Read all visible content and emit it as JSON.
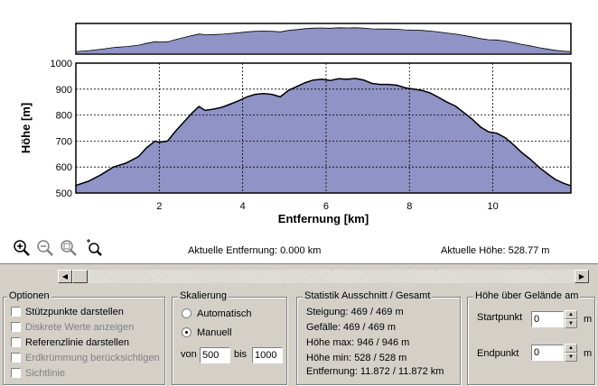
{
  "chart_data": {
    "type": "area",
    "title": "",
    "xlabel": "Entfernung [km]",
    "ylabel": "Höhe [m]",
    "xlim": [
      0,
      11.872
    ],
    "ylim": [
      500,
      1000
    ],
    "x_ticks": [
      2,
      4,
      6,
      8,
      10
    ],
    "x_tick_labels": [
      "2",
      "4",
      "6",
      "8",
      "10"
    ],
    "y_ticks": [
      500,
      600,
      700,
      800,
      900,
      1000
    ],
    "y_tick_labels": [
      "500",
      "600",
      "700",
      "800",
      "900",
      "1000"
    ],
    "grid": true,
    "fill_color": "#8f93c6",
    "line_color": "#000000",
    "x": [
      0,
      0.3,
      0.6,
      0.9,
      1.2,
      1.5,
      1.7,
      1.9,
      2.0,
      2.2,
      2.4,
      2.6,
      2.8,
      2.95,
      3.1,
      3.3,
      3.5,
      3.7,
      3.9,
      4.1,
      4.3,
      4.5,
      4.7,
      4.9,
      5.1,
      5.3,
      5.5,
      5.7,
      5.9,
      6.1,
      6.3,
      6.5,
      6.7,
      6.9,
      7.1,
      7.3,
      7.5,
      7.7,
      7.9,
      8.1,
      8.3,
      8.5,
      8.7,
      8.9,
      9.1,
      9.3,
      9.5,
      9.7,
      9.9,
      10.1,
      10.3,
      10.5,
      10.7,
      10.9,
      11.1,
      11.3,
      11.5,
      11.7,
      11.872
    ],
    "y": [
      529,
      545,
      570,
      600,
      615,
      640,
      675,
      700,
      695,
      700,
      740,
      775,
      810,
      833,
      818,
      823,
      830,
      842,
      855,
      870,
      880,
      883,
      880,
      870,
      895,
      910,
      925,
      935,
      938,
      933,
      940,
      938,
      941,
      935,
      922,
      918,
      918,
      915,
      905,
      900,
      895,
      885,
      868,
      850,
      835,
      810,
      785,
      755,
      735,
      730,
      713,
      685,
      655,
      630,
      600,
      575,
      552,
      537,
      528
    ]
  },
  "overview": {
    "min_y": 500,
    "max_y": 1000
  },
  "toolbar": {
    "icons": [
      "zoom-in-icon",
      "zoom-out-icon",
      "zoom-fit-icon",
      "zoom-reset-icon"
    ]
  },
  "readouts": {
    "distance": "Aktuelle Entfernung: 0.000 km",
    "height": "Aktuelle Höhe: 528.77 m"
  },
  "optionen": {
    "title": "Optionen",
    "items": [
      {
        "label": "Stützpunkte darstellen",
        "checked": false,
        "enabled": true
      },
      {
        "label": "Diskrete Werte anzeigen",
        "checked": false,
        "enabled": false
      },
      {
        "label": "Referenzlinie darstellen",
        "checked": false,
        "enabled": true
      },
      {
        "label": "Erdkrümmung berücksichtigen",
        "checked": false,
        "enabled": false
      },
      {
        "label": "Sichtlinie",
        "checked": false,
        "enabled": false
      }
    ]
  },
  "skalierung": {
    "title": "Skalierung",
    "automatic_label": "Automatisch",
    "manual_label": "Manuell",
    "selected": "Manuell",
    "von_label": "von",
    "bis_label": "bis",
    "von_value": "500",
    "bis_value": "1000"
  },
  "statistik": {
    "title": "Statistik  Ausschnitt / Gesamt",
    "rows": [
      "Steigung: 469 / 469 m",
      "Gefälle: 469 / 469 m",
      "Höhe max: 946 / 946 m",
      "Höhe min: 528 / 528 m",
      "Entfernung: 11.872 / 11.872 km"
    ]
  },
  "gelaende": {
    "title": "Höhe über Gelände am",
    "start_label": "Startpunkt",
    "start_value": "0",
    "end_label": "Endpunkt",
    "end_value": "0",
    "unit": "m"
  }
}
